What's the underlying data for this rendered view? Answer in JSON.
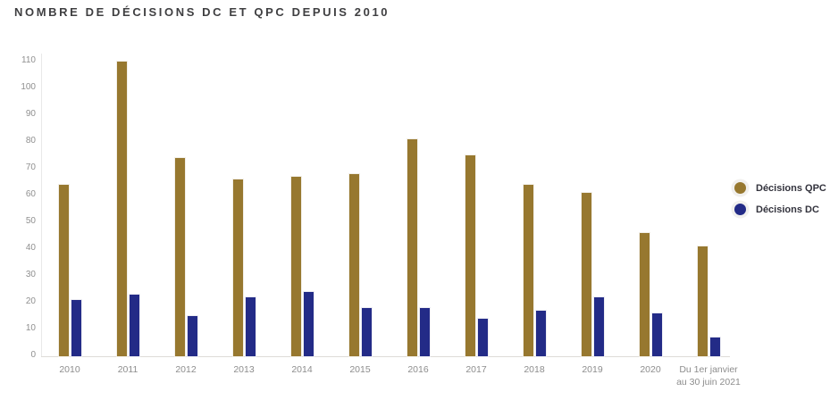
{
  "title": "NOMBRE DE DÉCISIONS DC ET QPC DEPUIS 2010",
  "colors": {
    "qpc": "#97782F",
    "dc": "#232B87",
    "title_text": "#3f3f41",
    "axis_text": "#8f8f8f",
    "axis_line": "#e9e9e9"
  },
  "chart_data": {
    "type": "bar",
    "title": "NOMBRE DE DÉCISIONS DC ET QPC DEPUIS 2010",
    "categories": [
      "2010",
      "2011",
      "2012",
      "2013",
      "2014",
      "2015",
      "2016",
      "2017",
      "2018",
      "2019",
      "2020",
      "Du 1er janvier au 30 juin 2021"
    ],
    "series": [
      {
        "name": "Décisions QPC",
        "color": "#97782F",
        "values": [
          64,
          110,
          74,
          66,
          67,
          68,
          81,
          75,
          64,
          61,
          46,
          41
        ]
      },
      {
        "name": "Décisions DC",
        "color": "#232B87",
        "values": [
          21,
          23,
          15,
          22,
          24,
          18,
          18,
          14,
          17,
          22,
          16,
          7
        ]
      }
    ],
    "xlabel": "",
    "ylabel": "",
    "ylim": [
      0,
      110
    ],
    "yticks": [
      0,
      10,
      20,
      30,
      40,
      50,
      60,
      70,
      80,
      90,
      100,
      110
    ],
    "grid": false,
    "legend_position": "right"
  }
}
